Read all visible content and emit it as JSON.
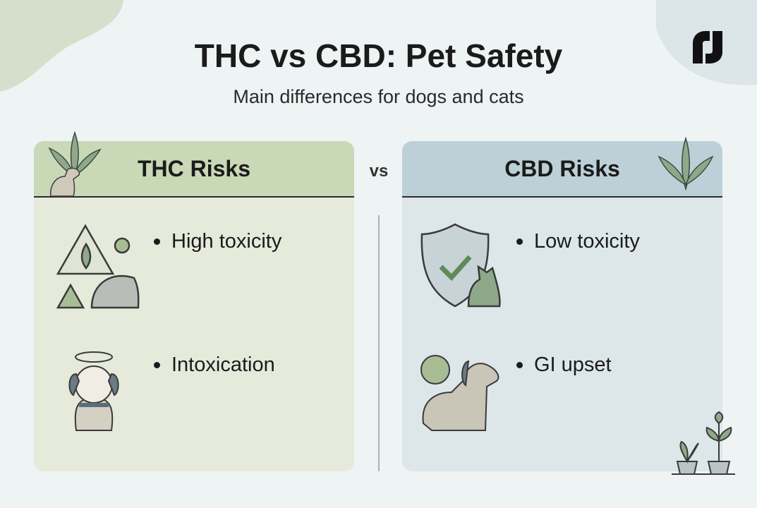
{
  "header": {
    "title": "THC vs CBD: Pet Safety",
    "subtitle": "Main differences for dogs and cats"
  },
  "separator": "vs",
  "panels": [
    {
      "title": "THC Risks",
      "items": [
        "High toxicity",
        "Intoxication"
      ]
    },
    {
      "title": "CBD Risks",
      "items": [
        "Low toxicity",
        "GI upset"
      ]
    }
  ]
}
